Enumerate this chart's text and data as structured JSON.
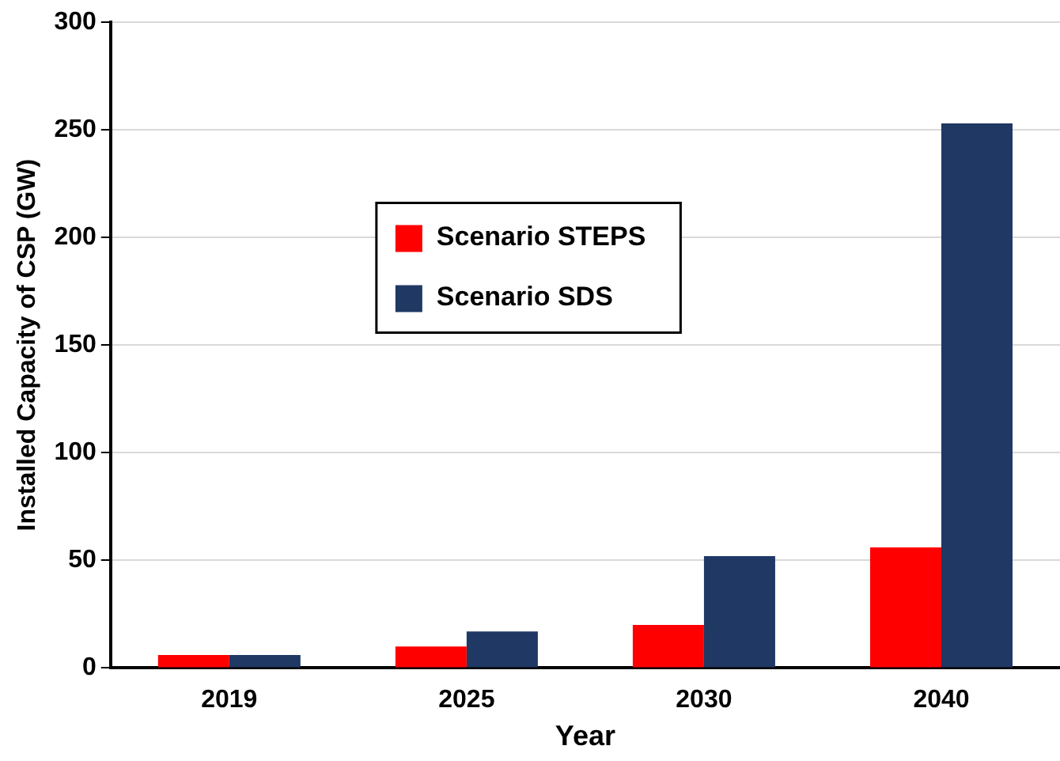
{
  "chart_data": {
    "type": "bar",
    "xlabel": "Year",
    "ylabel": "Installed Capacity of CSP (GW)",
    "categories": [
      "2019",
      "2025",
      "2030",
      "2040"
    ],
    "series": [
      {
        "name": "Scenario STEPS",
        "color": "#ff0000",
        "values": [
          6,
          10,
          20,
          56
        ]
      },
      {
        "name": "Scenario SDS",
        "color": "#1f3864",
        "values": [
          6,
          17,
          52,
          253
        ]
      }
    ],
    "ylim": [
      0,
      300
    ],
    "yticks": [
      0,
      50,
      100,
      150,
      200,
      250,
      300
    ],
    "grid": "y",
    "legend": "top"
  }
}
